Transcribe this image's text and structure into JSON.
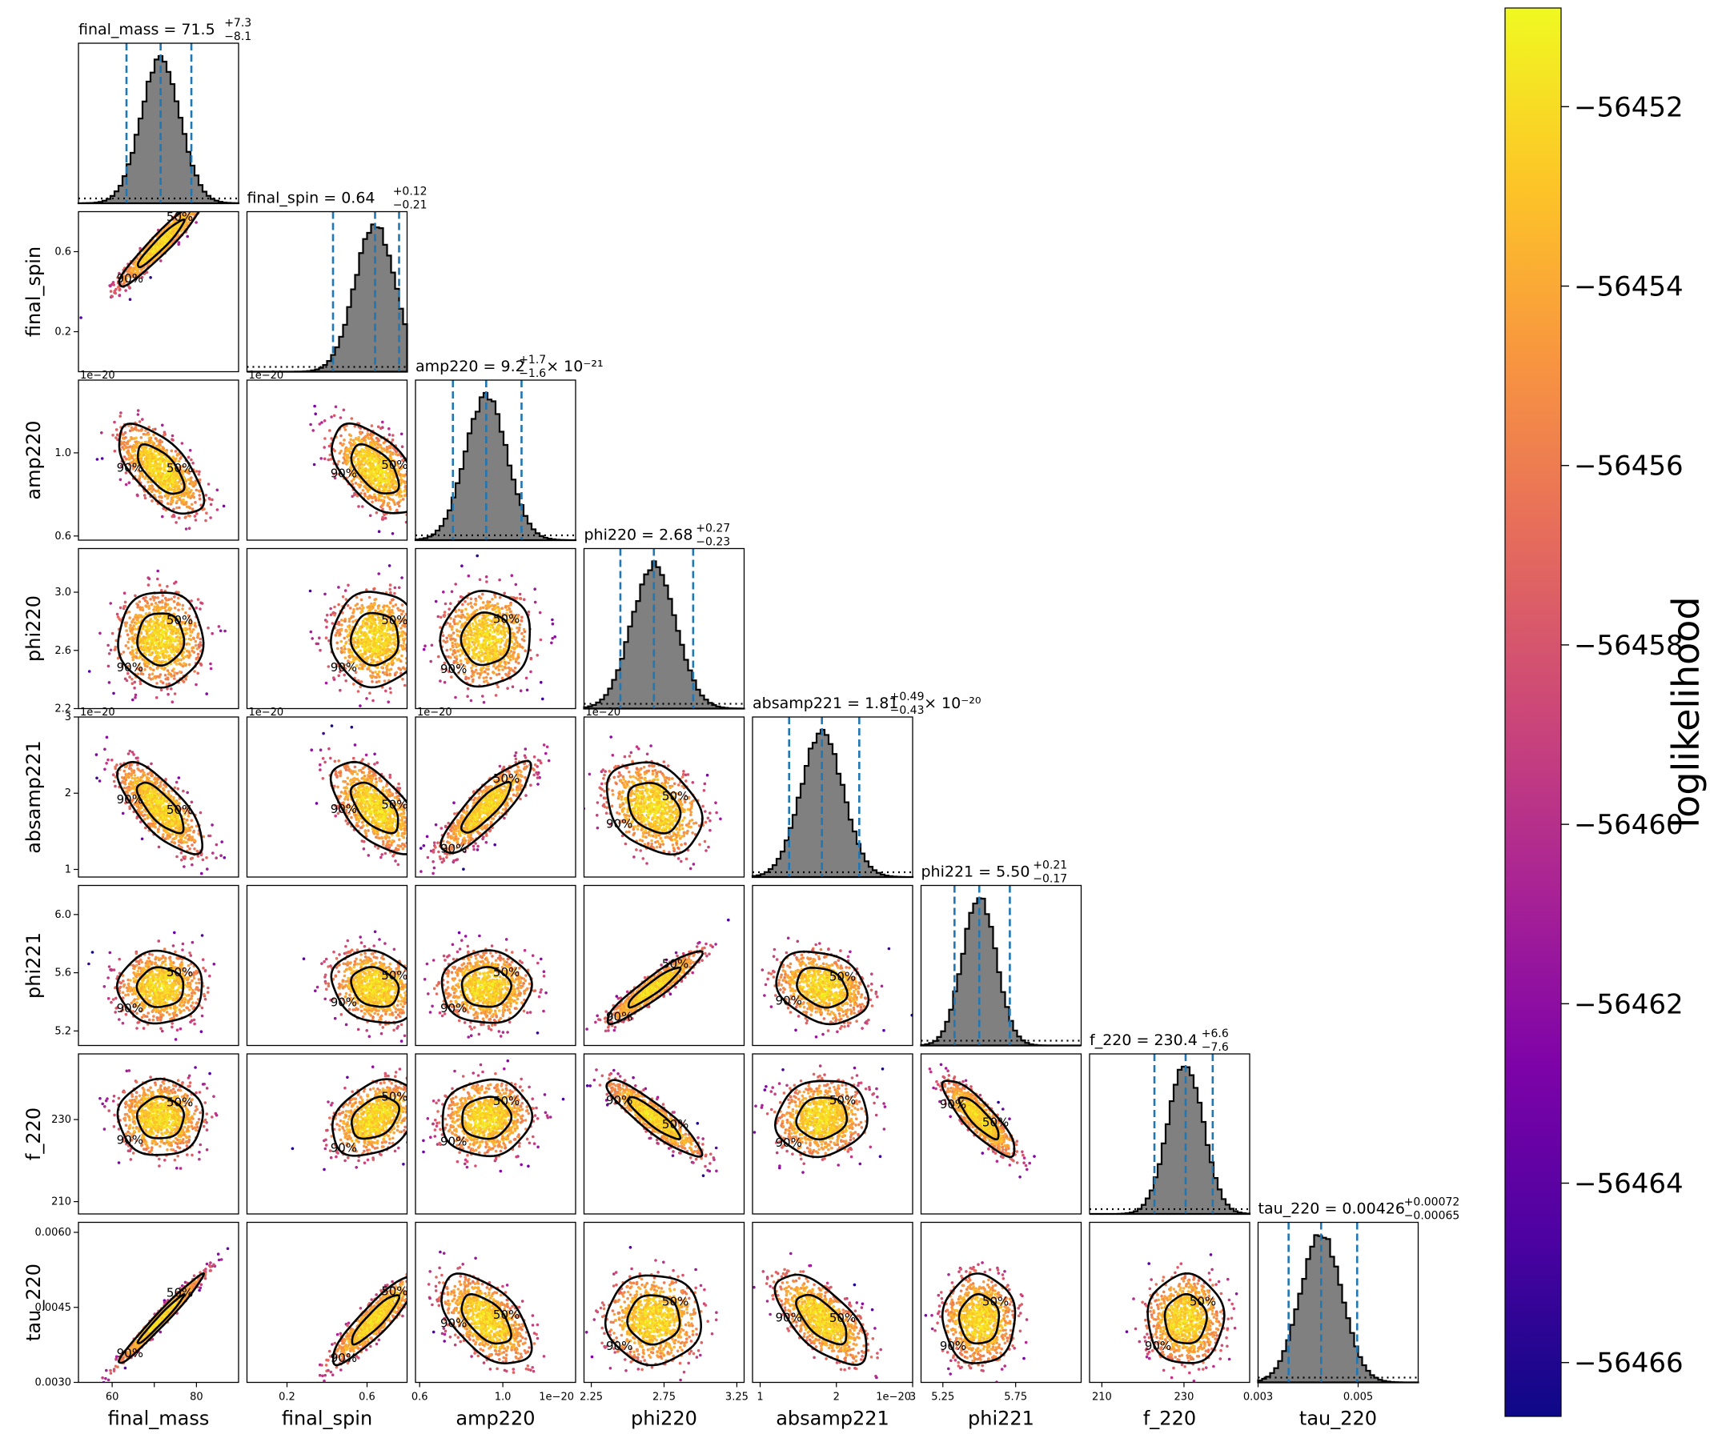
{
  "chart_data": {
    "type": "scatter",
    "title": "",
    "parameters": [
      {
        "key": "final_mass",
        "label": "final_mass",
        "median": 71.5,
        "ci_low": 63.4,
        "ci_high": 78.8,
        "range": [
          52,
          90
        ],
        "ticks": [
          60,
          70,
          80
        ],
        "tick_labels": [
          "60",
          "",
          "80"
        ],
        "scale_note": ""
      },
      {
        "key": "final_spin",
        "label": "final_spin",
        "median": 0.64,
        "ci_low": 0.43,
        "ci_high": 0.76,
        "range": [
          0.0,
          0.8
        ],
        "ticks": [
          0.2,
          0.6
        ],
        "tick_labels": [
          "0.2",
          "0.6"
        ],
        "scale_note": ""
      },
      {
        "key": "amp220",
        "label": "amp220",
        "median": 0.92,
        "ci_low": 0.76,
        "ci_high": 1.09,
        "range": [
          0.58,
          1.35
        ],
        "ticks": [
          0.6,
          1.0
        ],
        "tick_labels": [
          "0.6",
          "1.0"
        ],
        "scale_note": "1e−20"
      },
      {
        "key": "phi220",
        "label": "phi220",
        "median": 2.68,
        "ci_low": 2.45,
        "ci_high": 2.95,
        "range": [
          2.2,
          3.3
        ],
        "ticks": [
          2.25,
          2.75,
          3.25
        ],
        "tick_labels": [
          "2.25",
          "2.75",
          "3.25"
        ],
        "scale_note": ""
      },
      {
        "key": "absamp221",
        "label": "absamp221",
        "median": 1.81,
        "ci_low": 1.38,
        "ci_high": 2.3,
        "range": [
          0.9,
          3.0
        ],
        "ticks": [
          1,
          2,
          3
        ],
        "tick_labels": [
          "1",
          "2",
          "3"
        ],
        "scale_note": "1e−20"
      },
      {
        "key": "phi221",
        "label": "phi221",
        "median": 5.5,
        "ci_low": 5.33,
        "ci_high": 5.71,
        "range": [
          5.1,
          6.2
        ],
        "ticks": [
          5.25,
          5.75
        ],
        "tick_labels": [
          "5.25",
          "5.75"
        ],
        "scale_note": ""
      },
      {
        "key": "f_220",
        "label": "f_220",
        "median": 230.4,
        "ci_low": 222.8,
        "ci_high": 237.0,
        "range": [
          207,
          246
        ],
        "ticks": [
          210,
          230
        ],
        "tick_labels": [
          "210",
          "230"
        ],
        "scale_note": ""
      },
      {
        "key": "tau_220",
        "label": "tau_220",
        "median": 0.00426,
        "ci_low": 0.00361,
        "ci_high": 0.00498,
        "range": [
          0.003,
          0.0062
        ],
        "ticks": [
          0.003,
          0.005
        ],
        "tick_labels": [
          "0.003",
          "0.005"
        ],
        "scale_note": ""
      }
    ],
    "diag_titles": [
      {
        "name": "final_mass = 71.5",
        "sup": "+7.3",
        "sub": "−8.1",
        "suffix": ""
      },
      {
        "name": "final_spin = 0.64",
        "sup": "+0.12",
        "sub": "−0.21",
        "suffix": ""
      },
      {
        "name": "amp220 = 9.2",
        "sup": "+1.7",
        "sub": "−1.6",
        "suffix": " × 10⁻²¹"
      },
      {
        "name": "phi220 = 2.68",
        "sup": "+0.27",
        "sub": "−0.23",
        "suffix": ""
      },
      {
        "name": "absamp221 = 1.81",
        "sup": "+0.49",
        "sub": "−0.43",
        "suffix": " × 10⁻²⁰"
      },
      {
        "name": "phi221 = 5.50",
        "sup": "+0.21",
        "sub": "−0.17",
        "suffix": ""
      },
      {
        "name": "f_220 = 230.4",
        "sup": "+6.6",
        "sub": "−7.6",
        "suffix": ""
      },
      {
        "name": "tau_220 = 0.00426",
        "sup": "+0.00072",
        "sub": "−0.00065",
        "suffix": ""
      }
    ],
    "left_ticks": {
      "final_spin": {
        "ticks": [
          0.2,
          0.6
        ],
        "labels": [
          "0.2",
          "0.6"
        ]
      },
      "amp220": {
        "ticks": [
          0.6,
          1.0
        ],
        "labels": [
          "0.6",
          "1.0"
        ]
      },
      "phi220": {
        "ticks": [
          2.2,
          2.6,
          3.0
        ],
        "labels": [
          "2.2",
          "2.6",
          "3.0"
        ]
      },
      "absamp221": {
        "ticks": [
          1,
          2,
          3
        ],
        "labels": [
          "1",
          "2",
          "3"
        ]
      },
      "phi221": {
        "ticks": [
          5.2,
          5.6,
          6.0
        ],
        "labels": [
          "5.2",
          "5.6",
          "6.0"
        ]
      },
      "f_220": {
        "ticks": [
          210,
          230
        ],
        "labels": [
          "210",
          "230"
        ]
      },
      "tau_220": {
        "ticks": [
          0.003,
          0.0045,
          0.006
        ],
        "labels": [
          "0.0030",
          "0.0045",
          "0.0060"
        ]
      }
    },
    "correlations": {
      "final_spin|final_mass": 0.95,
      "amp220|final_mass": -0.65,
      "amp220|final_spin": -0.55,
      "phi220|final_mass": 0.0,
      "phi220|final_spin": 0.0,
      "phi220|amp220": 0.05,
      "absamp221|final_mass": -0.75,
      "absamp221|final_spin": -0.6,
      "absamp221|amp220": 0.85,
      "absamp221|phi220": -0.3,
      "phi221|final_mass": 0.0,
      "phi221|final_spin": -0.2,
      "phi221|amp220": 0.0,
      "phi221|phi220": 0.93,
      "phi221|absamp221": -0.25,
      "f_220|final_mass": 0.0,
      "f_220|final_spin": 0.35,
      "f_220|amp220": 0.05,
      "f_220|phi220": -0.9,
      "f_220|absamp221": 0.1,
      "f_220|phi221": -0.85,
      "tau_220|final_mass": 0.98,
      "tau_220|final_spin": 0.9,
      "tau_220|amp220": -0.55,
      "tau_220|phi220": 0.0,
      "tau_220|absamp221": -0.65,
      "tau_220|phi221": 0.0,
      "tau_220|f_220": 0.0
    },
    "contour_levels": [
      "50%",
      "90%"
    ],
    "scale_notes": [
      "1e−20"
    ],
    "colorbar": {
      "label": "loglikelihood",
      "range": [
        -56466.6,
        -56450.9
      ],
      "ticks": [
        -56452,
        -56454,
        -56456,
        -56458,
        -56460,
        -56462,
        -56464,
        -56466
      ],
      "tick_labels": [
        "−56452",
        "−56454",
        "−56456",
        "−56458",
        "−56460",
        "−56462",
        "−56464",
        "−56466"
      ],
      "colormap": "plasma"
    },
    "colors": {
      "quantile_line": "#1f77b4",
      "histogram_fill": "#808080",
      "contour": "#000000",
      "prior_line": "#000000"
    }
  }
}
